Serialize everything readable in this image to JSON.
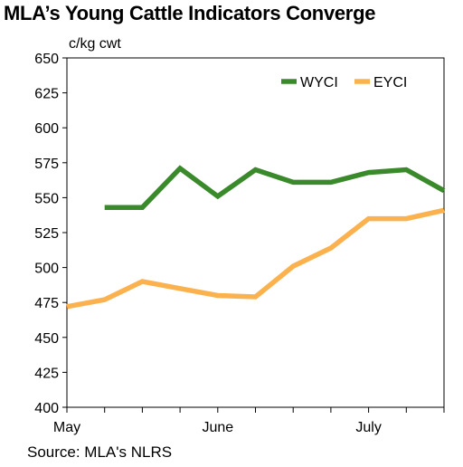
{
  "title": "MLA’s Young Cattle Indicators Converge",
  "source": "Source: MLA's NLRS",
  "chart_data": {
    "type": "line",
    "title": "MLA’s Young Cattle Indicators Converge",
    "ylabel": "c/kg cwt",
    "xlabel": "",
    "ylim": [
      400,
      650
    ],
    "yticks": [
      400,
      425,
      450,
      475,
      500,
      525,
      550,
      575,
      600,
      625,
      650
    ],
    "xlim": [
      0,
      10
    ],
    "x_ticks": [
      0,
      1,
      2,
      3,
      4,
      5,
      6,
      7,
      8,
      9,
      10
    ],
    "x_tick_labels": [
      {
        "x": 0,
        "label": "May"
      },
      {
        "x": 4,
        "label": "June"
      },
      {
        "x": 8,
        "label": "July"
      }
    ],
    "grid": false,
    "legend": "top-right",
    "series": [
      {
        "name": "WYCI",
        "color": "#3a8a2c",
        "x": [
          1,
          2,
          3,
          4,
          5,
          6,
          7,
          8,
          9,
          10
        ],
        "values": [
          543,
          543,
          571,
          551,
          570,
          561,
          561,
          568,
          570,
          555
        ]
      },
      {
        "name": "EYCI",
        "color": "#fbb24e",
        "x": [
          0,
          1,
          2,
          3,
          4,
          5,
          6,
          7,
          8,
          9,
          10
        ],
        "values": [
          472,
          477,
          490,
          485,
          480,
          479,
          501,
          514,
          535,
          535,
          541
        ]
      }
    ]
  }
}
